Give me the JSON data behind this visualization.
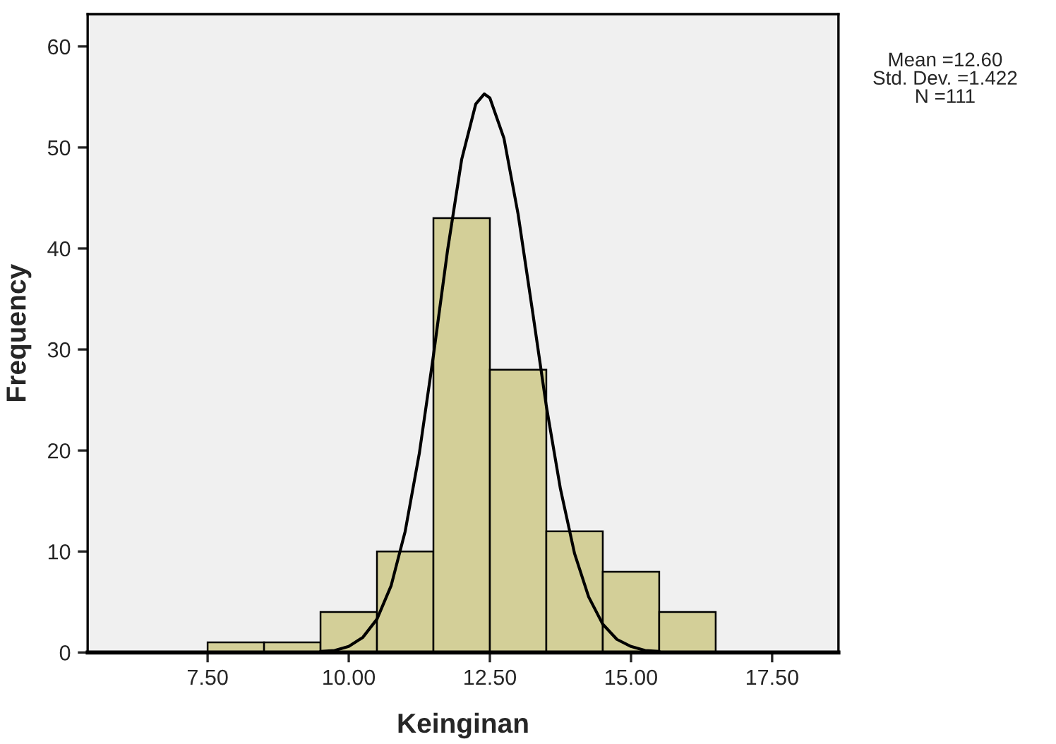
{
  "chart_data": {
    "type": "histogram",
    "xlabel": "Keinginan",
    "ylabel": "Frequency",
    "bins": [
      7.5,
      8.5,
      9.5,
      10.5,
      11.5,
      12.5,
      13.5,
      14.5,
      15.5,
      16.5
    ],
    "values": [
      1,
      1,
      4,
      10,
      43,
      28,
      12,
      8,
      4
    ],
    "color": "#d3cf98",
    "series": [
      {
        "type": "line",
        "color": "#000000",
        "x": [
          9.5,
          9.75,
          10,
          10.25,
          10.5,
          10.75,
          11,
          11.25,
          11.5,
          11.75,
          12,
          12.25,
          12.4,
          12.5,
          12.75,
          13,
          13.25,
          13.5,
          13.75,
          14,
          14.25,
          14.5,
          14.75,
          15,
          15.25,
          15.5
        ],
        "values": [
          0.1,
          0.2,
          0.6,
          1.5,
          3.3,
          6.6,
          12,
          19.7,
          29.4,
          39.8,
          48.8,
          54.3,
          55.3,
          54.9,
          50.9,
          43.4,
          34,
          24.4,
          16.2,
          9.8,
          5.5,
          2.8,
          1.3,
          0.6,
          0.2,
          0.1
        ]
      }
    ],
    "xlim": [
      5.375,
      18.675
    ],
    "xticks": [
      {
        "value": 7.5,
        "label": "7.50"
      },
      {
        "value": 10,
        "label": "10.00"
      },
      {
        "value": 12.5,
        "label": "12.50"
      },
      {
        "value": 15,
        "label": "15.00"
      },
      {
        "value": 17.5,
        "label": "17.50"
      }
    ],
    "ylim": [
      0,
      63.2
    ],
    "yticks": [
      0,
      10,
      20,
      30,
      40,
      50,
      60
    ],
    "annotations": [
      "Mean =12.60\nStd. Dev. =1.422\nN =111"
    ]
  }
}
